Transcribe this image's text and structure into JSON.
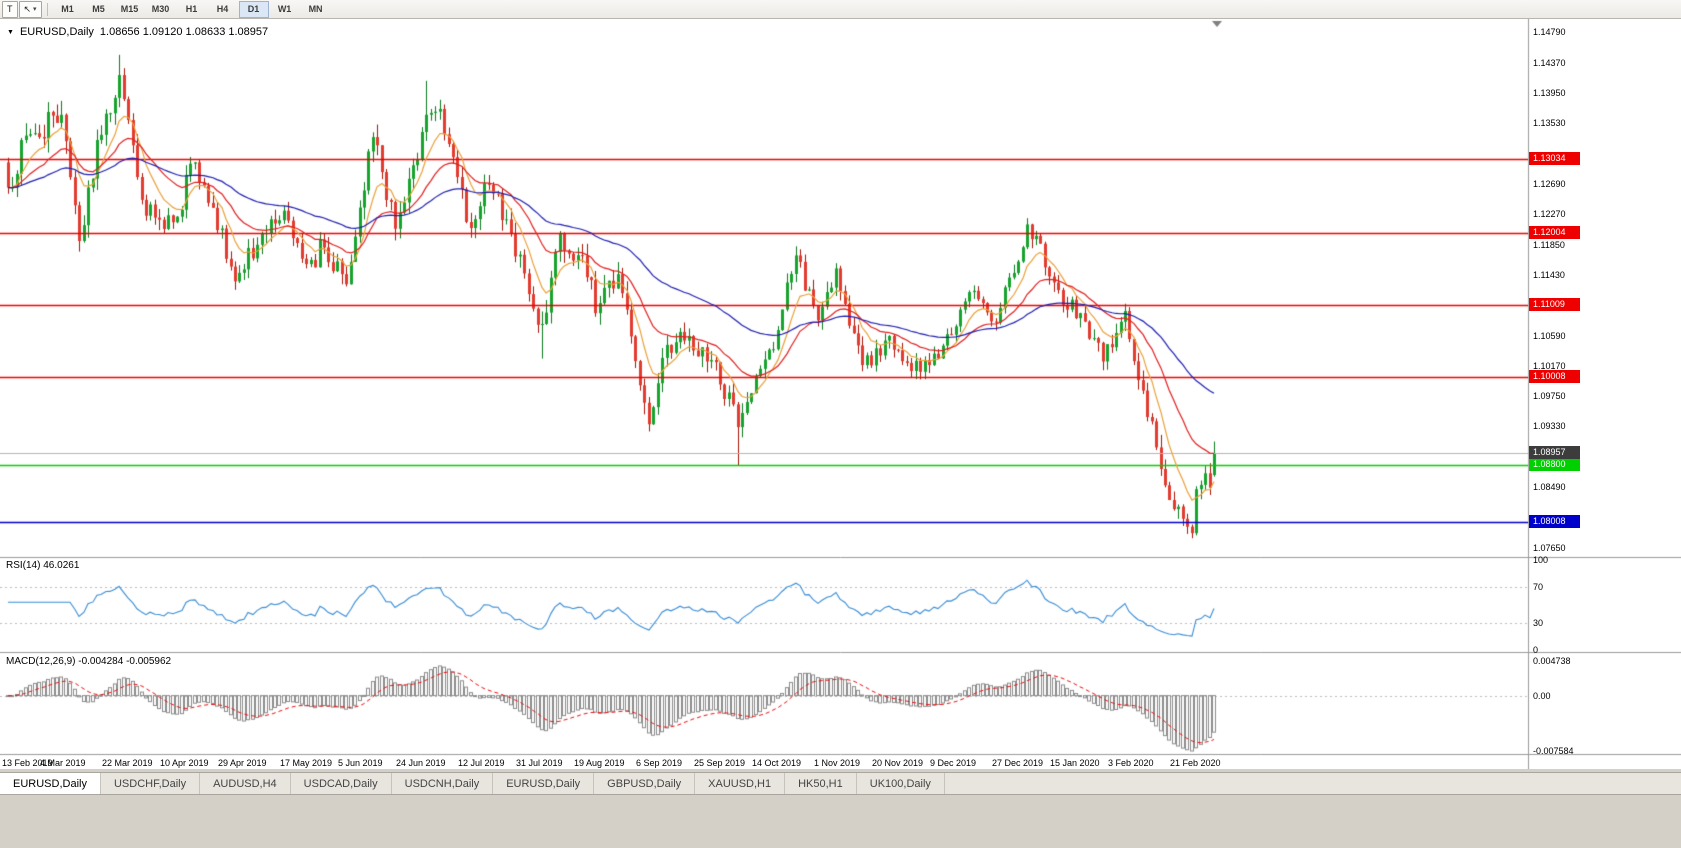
{
  "toolbar": {
    "tool_letter": "T",
    "cursor_icon": "↖",
    "dropdown_arrow": "▾",
    "timeframes": [
      "M1",
      "M5",
      "M15",
      "M30",
      "H1",
      "H4",
      "D1",
      "W1",
      "MN"
    ],
    "active_timeframe": "D1"
  },
  "chart_data": {
    "type": "candlestick",
    "symbol": "EURUSD",
    "timeframe": "Daily",
    "title_arrow": "▼",
    "title_symbol": "EURUSD,Daily",
    "title_ohlc": "1.08656 1.09120 1.08633 1.08957",
    "num_candles": 272,
    "price_axis": {
      "top_price": 1.1488,
      "bottom_price": 1.0752,
      "ticks": [
        "1.14790",
        "1.14370",
        "1.13950",
        "1.13530",
        "1.13110",
        "1.12690",
        "1.12270",
        "1.11850",
        "1.11430",
        "1.11010",
        "1.10590",
        "1.10170",
        "1.09750",
        "1.09330",
        "1.08910",
        "1.08490",
        "1.08070",
        "1.07650"
      ]
    },
    "hlines": [
      {
        "price": 1.13034,
        "label": "1.13034",
        "color": "#ee0000"
      },
      {
        "price": 1.12004,
        "label": "1.12004",
        "color": "#ee0000"
      },
      {
        "price": 1.11009,
        "label": "1.11009",
        "color": "#ee0000"
      },
      {
        "price": 1.10008,
        "label": "1.10008",
        "color": "#ee0000"
      },
      {
        "price": 1.088,
        "label": "1.08800",
        "color": "#00d000"
      },
      {
        "price": 1.08008,
        "label": "1.08008",
        "color": "#0000cc"
      }
    ],
    "current_price": {
      "price": 1.08957,
      "label": "1.08957",
      "badge_color": "#3c3c3c",
      "line_color": "#b5b5b5"
    },
    "anchors": [
      [
        0,
        1.1264
      ],
      [
        5,
        1.1338
      ],
      [
        12,
        1.1365
      ],
      [
        16,
        1.119
      ],
      [
        20,
        1.133
      ],
      [
        25,
        1.142
      ],
      [
        31,
        1.1225
      ],
      [
        37,
        1.1216
      ],
      [
        42,
        1.1299
      ],
      [
        46,
        1.1236
      ],
      [
        51,
        1.1134
      ],
      [
        57,
        1.12
      ],
      [
        62,
        1.1232
      ],
      [
        67,
        1.1158
      ],
      [
        71,
        1.1181
      ],
      [
        76,
        1.113
      ],
      [
        82,
        1.1334
      ],
      [
        87,
        1.1207
      ],
      [
        91,
        1.1295
      ],
      [
        94,
        1.1365
      ],
      [
        97,
        1.1373
      ],
      [
        104,
        1.1208
      ],
      [
        107,
        1.127
      ],
      [
        112,
        1.122
      ],
      [
        116,
        1.1145
      ],
      [
        120,
        1.1075
      ],
      [
        124,
        1.12
      ],
      [
        129,
        1.117
      ],
      [
        132,
        1.109
      ],
      [
        137,
        1.1144
      ],
      [
        142,
        1.099
      ],
      [
        144,
        1.0936
      ],
      [
        147,
        1.1028
      ],
      [
        151,
        1.1064
      ],
      [
        155,
        1.103
      ],
      [
        159,
        1.1022
      ],
      [
        164,
        1.0932
      ],
      [
        167,
        1.0979
      ],
      [
        172,
        1.104
      ],
      [
        177,
        1.117
      ],
      [
        182,
        1.108
      ],
      [
        186,
        1.1152
      ],
      [
        192,
        1.1018
      ],
      [
        197,
        1.1052
      ],
      [
        202,
        1.1021
      ],
      [
        207,
        1.1018
      ],
      [
        212,
        1.106
      ],
      [
        217,
        1.1121
      ],
      [
        222,
        1.1077
      ],
      [
        229,
        1.1213
      ],
      [
        236,
        1.1122
      ],
      [
        241,
        1.109
      ],
      [
        246,
        1.1023
      ],
      [
        251,
        1.1093
      ],
      [
        256,
        1.0946
      ],
      [
        261,
        1.0831
      ],
      [
        264,
        1.0805
      ],
      [
        266,
        1.0785
      ],
      [
        267,
        1.0846
      ],
      [
        269,
        1.0868
      ],
      [
        271,
        1.08957
      ]
    ],
    "volatility": [
      [
        0,
        1.4
      ],
      [
        30,
        1.1
      ],
      [
        60,
        0.9
      ],
      [
        80,
        1.2
      ],
      [
        100,
        1.0
      ],
      [
        120,
        1.2
      ],
      [
        145,
        1.2
      ],
      [
        165,
        1.0
      ],
      [
        185,
        1.0
      ],
      [
        210,
        0.7
      ],
      [
        230,
        0.85
      ],
      [
        250,
        1.0
      ],
      [
        271,
        1.5
      ]
    ],
    "overrides": [
      {
        "i": 25,
        "h": 1.1448
      },
      {
        "i": 94,
        "h": 1.1412
      },
      {
        "i": 120,
        "l": 1.1027
      },
      {
        "i": 144,
        "l": 1.0926
      },
      {
        "i": 164,
        "l": 1.0879
      },
      {
        "i": 264,
        "o": 1.0822,
        "h": 1.0825,
        "l": 1.0795,
        "c": 1.0805
      },
      {
        "i": 265,
        "o": 1.0805,
        "h": 1.0812,
        "l": 1.0784,
        "c": 1.0794
      },
      {
        "i": 266,
        "o": 1.0794,
        "h": 1.0797,
        "l": 1.0778,
        "c": 1.0785
      },
      {
        "i": 267,
        "o": 1.0785,
        "h": 1.085,
        "l": 1.0782,
        "c": 1.0846
      },
      {
        "i": 268,
        "o": 1.0846,
        "h": 1.0858,
        "l": 1.0832,
        "c": 1.0852
      },
      {
        "i": 269,
        "o": 1.0852,
        "h": 1.0878,
        "l": 1.0845,
        "c": 1.0868
      },
      {
        "i": 270,
        "o": 1.0868,
        "h": 1.0882,
        "l": 1.0838,
        "c": 1.0848
      },
      {
        "i": 271,
        "o": 1.08656,
        "h": 1.0912,
        "l": 1.08633,
        "c": 1.08957
      }
    ],
    "moving_averages": [
      {
        "period": 8,
        "color": "#eaa13a"
      },
      {
        "period": 21,
        "color": "#e02020"
      },
      {
        "period": 55,
        "color": "#2020b0"
      }
    ],
    "candle_colors": {
      "up_body": "#17a42e",
      "up_wick": "#0b7a1e",
      "down_body": "#e23b2f",
      "down_wick": "#aa1508"
    },
    "x_labels": [
      {
        "i": 0,
        "label": "13 Feb 2019"
      },
      {
        "i": 13,
        "label": "4 Mar 2019"
      },
      {
        "i": 27,
        "label": "22 Mar 2019"
      },
      {
        "i": 40,
        "label": "10 Apr 2019"
      },
      {
        "i": 53,
        "label": "29 Apr 2019"
      },
      {
        "i": 67,
        "label": "17 May 2019"
      },
      {
        "i": 80,
        "label": "5 Jun 2019"
      },
      {
        "i": 93,
        "label": "24 Jun 2019"
      },
      {
        "i": 107,
        "label": "12 Jul 2019"
      },
      {
        "i": 120,
        "label": "31 Jul 2019"
      },
      {
        "i": 133,
        "label": "19 Aug 2019"
      },
      {
        "i": 147,
        "label": "6 Sep 2019"
      },
      {
        "i": 160,
        "label": "25 Sep 2019"
      },
      {
        "i": 173,
        "label": "14 Oct 2019"
      },
      {
        "i": 187,
        "label": "1 Nov 2019"
      },
      {
        "i": 200,
        "label": "20 Nov 2019"
      },
      {
        "i": 213,
        "label": "9 Dec 2019"
      },
      {
        "i": 227,
        "label": "27 Dec 2019"
      },
      {
        "i": 240,
        "label": "15 Jan 2020"
      },
      {
        "i": 253,
        "label": "3 Feb 2020"
      },
      {
        "i": 267,
        "label": "21 Feb 2020"
      }
    ],
    "rsi": {
      "label": "RSI(14) 46.0261",
      "period": 14,
      "last_value": 46.0261,
      "line_color": "#3a8dd6",
      "levels": [
        100,
        70,
        30,
        0
      ],
      "level_labels": [
        "100",
        "70",
        "30",
        "0"
      ],
      "dotted_levels": [
        70,
        30
      ]
    },
    "macd": {
      "label": "MACD(12,26,9) -0.004284 -0.005962",
      "fast": 12,
      "slow": 26,
      "signal": 9,
      "main_value": -0.004284,
      "signal_value": -0.005962,
      "max": 0.004738,
      "min": -0.007584,
      "axis_labels": [
        {
          "v": 0.004738,
          "label": "0.004738"
        },
        {
          "v": 0,
          "label": "0.00"
        },
        {
          "v": -0.007584,
          "label": "-0.007584"
        }
      ],
      "hist_color": "#8c8c8c",
      "signal_color": "#ee1111"
    }
  },
  "tabs": [
    {
      "label": "EURUSD,Daily",
      "active": true
    },
    {
      "label": "USDCHF,Daily",
      "active": false
    },
    {
      "label": "AUDUSD,H4",
      "active": false
    },
    {
      "label": "USDCAD,Daily",
      "active": false
    },
    {
      "label": "USDCNH,Daily",
      "active": false
    },
    {
      "label": "EURUSD,Daily",
      "active": false
    },
    {
      "label": "GBPUSD,Daily",
      "active": false
    },
    {
      "label": "XAUUSD,H1",
      "active": false
    },
    {
      "label": "HK50,H1",
      "active": false
    },
    {
      "label": "UK100,Daily",
      "active": false
    }
  ]
}
